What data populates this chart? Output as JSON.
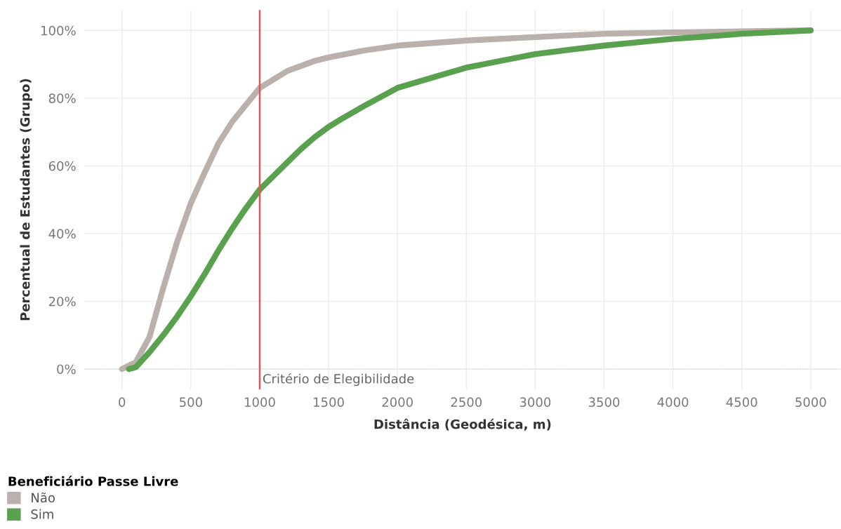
{
  "chart_data": {
    "type": "line",
    "xlabel": "Distância (Geodésica, m)",
    "ylabel": "Percentual de Estudantes (Grupo)",
    "legend_title": "Beneficiário Passe Livre",
    "xlim": [
      -275,
      5220
    ],
    "ylim": [
      -6,
      106
    ],
    "xticks": [
      0,
      500,
      1000,
      1500,
      2000,
      2500,
      3000,
      3500,
      4000,
      4500,
      5000
    ],
    "yticks": [
      {
        "value": 0,
        "label": "0%"
      },
      {
        "value": 20,
        "label": "20%"
      },
      {
        "value": 40,
        "label": "40%"
      },
      {
        "value": 60,
        "label": "60%"
      },
      {
        "value": 80,
        "label": "80%"
      },
      {
        "value": 100,
        "label": "100%"
      }
    ],
    "grid": true,
    "legend": "bottom left",
    "marker": "none",
    "line_style": "solid",
    "ref_lines": [
      {
        "axis": "x",
        "value": 1000,
        "label": "Critério de Elegibilidade",
        "color": "#e15759"
      },
      {
        "axis": "y",
        "value": 0,
        "color": "#aaaaaa",
        "line_style": "dotted"
      },
      {
        "axis": "x",
        "value": 0,
        "color": "#cccccc",
        "line_style": "dotted"
      }
    ],
    "series": [
      {
        "name": "Não",
        "color": "#bab0ac",
        "x": [
          0,
          100,
          200,
          300,
          400,
          500,
          600,
          700,
          800,
          900,
          1000,
          1100,
          1200,
          1300,
          1400,
          1500,
          1750,
          2000,
          2500,
          3000,
          3500,
          4000,
          4500,
          5000
        ],
        "values": [
          0,
          2,
          9.5,
          24,
          37.5,
          49,
          58,
          66.6,
          73,
          78,
          83,
          85.5,
          88,
          89.5,
          91,
          92,
          94,
          95.5,
          97,
          98,
          99,
          99.4,
          99.7,
          100
        ]
      },
      {
        "name": "Sim",
        "color": "#59a14f",
        "x": [
          50,
          100,
          200,
          300,
          400,
          500,
          600,
          700,
          800,
          900,
          1000,
          1100,
          1200,
          1300,
          1400,
          1500,
          1600,
          1750,
          2000,
          2250,
          2500,
          2750,
          3000,
          3250,
          3500,
          3750,
          4000,
          4250,
          4500,
          5000
        ],
        "values": [
          0,
          0.5,
          5,
          10,
          15.5,
          21.5,
          28,
          35,
          41.5,
          47.5,
          53,
          57,
          61,
          65,
          68.5,
          71.5,
          74,
          77.5,
          83,
          86,
          89,
          91,
          93,
          94.3,
          95.5,
          96.5,
          97.5,
          98.2,
          99,
          100
        ]
      }
    ]
  }
}
